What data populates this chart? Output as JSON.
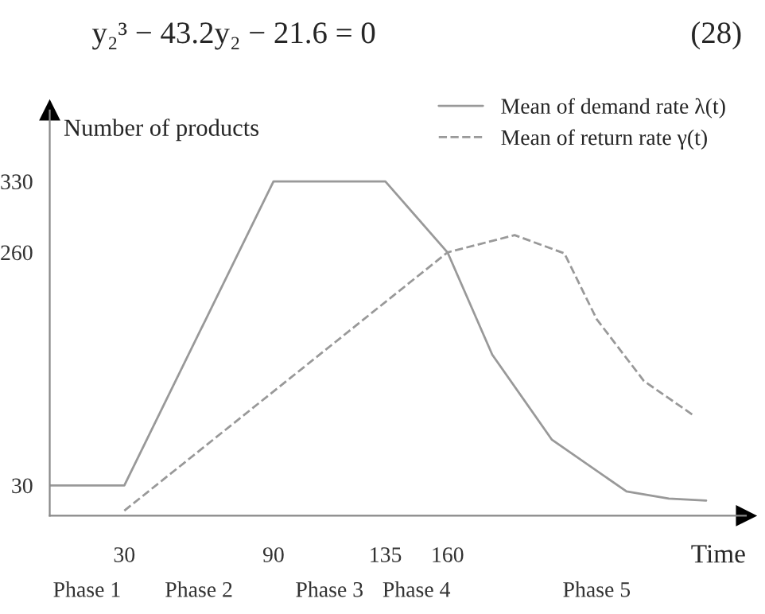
{
  "chart_data": {
    "type": "line",
    "xlabel": "Time",
    "ylabel": "Number of products",
    "xlim": [
      0,
      280
    ],
    "xticks": [
      30,
      90,
      135,
      160
    ],
    "ylim": [
      0,
      400
    ],
    "yticks": [
      30,
      260,
      330
    ],
    "grid": false,
    "legend": "top right",
    "marker": "none",
    "series": [
      {
        "name": "Mean of demand rate λ(t)",
        "color": "#999999",
        "line_style": "solid",
        "x": [
          0,
          30,
          90,
          135,
          160,
          178,
          202,
          232,
          249,
          264
        ],
        "values": [
          30,
          30,
          330,
          330,
          260,
          159,
          75,
          24,
          17,
          15
        ]
      },
      {
        "name": "Mean of return rate γ(t)",
        "color": "#999999",
        "line_style": "dashed",
        "x": [
          30,
          160,
          187,
          207,
          220,
          239,
          259
        ],
        "values": [
          5,
          260,
          277,
          259,
          194,
          133,
          99
        ]
      }
    ],
    "annotations": [
      "y₂³ − 43.2y₂ − 21.6 = 0",
      "(28)",
      "Phase 1",
      "Phase 2",
      "Phase 3",
      "Phase 4",
      "Phase 5"
    ]
  }
}
